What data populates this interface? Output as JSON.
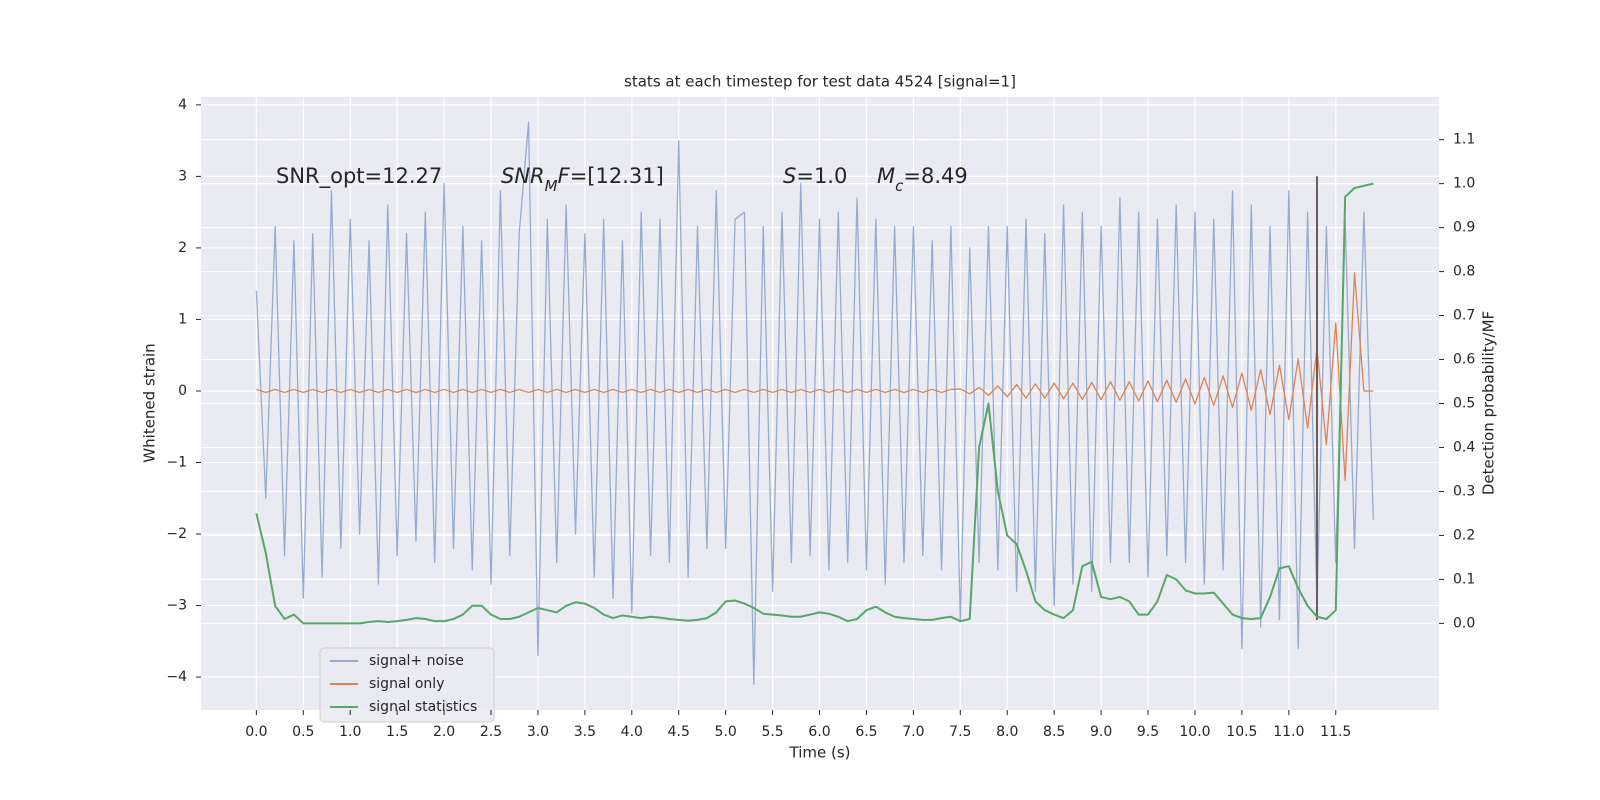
{
  "chart_data": {
    "type": "line",
    "title": "stats at each timestep for test data 4524 [signal=1]",
    "x_label": "Time (s)",
    "y_label": "Whitened strain",
    "y2_label": "Detection probability/MF",
    "xlim": [
      -0.59,
      12.6
    ],
    "ylim": [
      -4.46,
      4.11
    ],
    "y2lim": [
      -0.197,
      1.197
    ],
    "xticks": [
      {
        "value": 0,
        "label": "0.0"
      },
      0.5,
      {
        "value": 1,
        "label": "1.0"
      },
      1.5,
      {
        "value": 2,
        "label": "2.0"
      },
      2.5,
      {
        "value": 3,
        "label": "3.0"
      },
      3.5,
      {
        "value": 4,
        "label": "4.0"
      },
      4.5,
      {
        "value": 5,
        "label": "5.0"
      },
      5.5,
      {
        "value": 6,
        "label": "6.0"
      },
      6.5,
      {
        "value": 7,
        "label": "7.0"
      },
      7.5,
      {
        "value": 8,
        "label": "8.0"
      },
      8.5,
      {
        "value": 9,
        "label": "9.0"
      },
      9.5,
      {
        "value": 10,
        "label": "10.0"
      },
      10.5,
      {
        "value": 11,
        "label": "11.0"
      },
      11.5
    ],
    "yticks": [
      {
        "value": -4,
        "label": "−4"
      },
      {
        "value": -3,
        "label": "−3"
      },
      {
        "value": -2,
        "label": "−2"
      },
      {
        "value": -1,
        "label": "−1"
      },
      0,
      1,
      2,
      3,
      4
    ],
    "y2ticks": [
      {
        "value": 0,
        "label": "0.0"
      },
      0.1,
      0.2,
      0.3,
      0.4,
      0.5,
      0.6,
      0.7,
      0.8,
      0.9,
      {
        "value": 1,
        "label": "1.0"
      },
      1.1
    ],
    "grid": true,
    "legend": "lower left",
    "annotations": [
      [
        {
          "text": "SNR_opt=12.27",
          "math": "none"
        }
      ],
      [
        {
          "text": "SNR",
          "math": "italic"
        },
        {
          "text": "M",
          "math": "sub-italic"
        },
        {
          "text": "F",
          "math": "italic"
        },
        {
          "text": "=[12.31]",
          "math": "none"
        }
      ],
      [
        {
          "text": "S",
          "math": "italic"
        },
        {
          "text": "=1.0",
          "math": "none"
        }
      ],
      [
        {
          "text": "M",
          "math": "italic"
        },
        {
          "text": "c",
          "math": "sub-italic"
        },
        {
          "text": "=8.49",
          "math": "none"
        }
      ]
    ],
    "vline_x": 11.3,
    "vline_color": "#6b5a55",
    "x": [
      0.0,
      0.1,
      0.2,
      0.3,
      0.4,
      0.5,
      0.6,
      0.7,
      0.8,
      0.9,
      1.0,
      1.1,
      1.2,
      1.3,
      1.4,
      1.5,
      1.6,
      1.7,
      1.8,
      1.9,
      2.0,
      2.1,
      2.2,
      2.3,
      2.4,
      2.5,
      2.6,
      2.7,
      2.8,
      2.9,
      3.0,
      3.1,
      3.2,
      3.3,
      3.4,
      3.5,
      3.6,
      3.7,
      3.8,
      3.9,
      4.0,
      4.1,
      4.2,
      4.3,
      4.4,
      4.5,
      4.6,
      4.7,
      4.8,
      4.9,
      5.0,
      5.1,
      5.2,
      5.3,
      5.4,
      5.5,
      5.6,
      5.7,
      5.8,
      5.9,
      6.0,
      6.1,
      6.2,
      6.3,
      6.4,
      6.5,
      6.6,
      6.7,
      6.8,
      6.9,
      7.0,
      7.1,
      7.2,
      7.3,
      7.4,
      7.5,
      7.6,
      7.7,
      7.8,
      7.9,
      8.0,
      8.1,
      8.2,
      8.3,
      8.4,
      8.5,
      8.6,
      8.7,
      8.8,
      8.9,
      9.0,
      9.1,
      9.2,
      9.3,
      9.4,
      9.5,
      9.6,
      9.7,
      9.8,
      9.9,
      10.0,
      10.1,
      10.2,
      10.3,
      10.4,
      10.5,
      10.6,
      10.7,
      10.8,
      10.9,
      11.0,
      11.1,
      11.2,
      11.3,
      11.4,
      11.5,
      11.6,
      11.7,
      11.8,
      11.9
    ],
    "series": [
      {
        "name": "signal+ noise",
        "color": "#98abcf",
        "values": [
          1.4,
          -1.5,
          2.3,
          -2.3,
          2.1,
          -2.9,
          2.2,
          -2.6,
          2.8,
          -2.2,
          2.4,
          -2.0,
          2.1,
          -2.7,
          2.6,
          -2.3,
          2.2,
          -2.1,
          2.5,
          -2.4,
          2.9,
          -2.2,
          2.3,
          -2.5,
          2.1,
          -2.7,
          2.8,
          -2.3,
          2.2,
          3.76,
          -3.7,
          2.4,
          -2.4,
          2.6,
          -2.0,
          2.2,
          -2.6,
          2.4,
          -2.9,
          2.1,
          -3.1,
          2.5,
          -2.3,
          2.4,
          -2.4,
          3.5,
          -2.6,
          2.3,
          -2.2,
          2.8,
          -2.2,
          2.4,
          2.5,
          -4.1,
          2.3,
          -2.8,
          2.5,
          -2.4,
          2.9,
          -2.3,
          2.4,
          -2.5,
          2.5,
          -2.4,
          2.7,
          -2.5,
          2.4,
          -2.7,
          2.3,
          -2.4,
          2.3,
          -2.3,
          2.1,
          -2.5,
          2.3,
          -3.2,
          2.0,
          -2.4,
          2.3,
          -2.5,
          2.3,
          -2.8,
          2.4,
          -2.8,
          2.2,
          -3.0,
          2.6,
          -2.7,
          2.5,
          -2.8,
          2.3,
          -2.4,
          2.7,
          -2.4,
          2.5,
          -2.6,
          2.4,
          -2.3,
          2.6,
          -2.4,
          2.5,
          -2.7,
          2.4,
          -2.5,
          2.8,
          -3.6,
          2.6,
          -3.3,
          2.3,
          -3.2,
          2.8,
          -3.6,
          2.5,
          -3.0,
          2.3,
          -2.4,
          2.4,
          -2.2,
          2.5,
          -1.8
        ]
      },
      {
        "name": "signal only",
        "color": "#dd8452",
        "values": [
          0.02,
          -0.02,
          0.02,
          -0.02,
          0.02,
          -0.02,
          0.02,
          -0.02,
          0.02,
          -0.02,
          0.02,
          -0.02,
          0.02,
          -0.02,
          0.02,
          -0.02,
          0.02,
          -0.02,
          0.02,
          -0.02,
          0.02,
          -0.02,
          0.02,
          -0.02,
          0.02,
          -0.02,
          0.02,
          -0.02,
          0.02,
          -0.02,
          0.02,
          -0.02,
          0.02,
          -0.02,
          0.02,
          -0.02,
          0.02,
          -0.02,
          0.02,
          -0.02,
          0.02,
          -0.02,
          0.02,
          -0.02,
          0.02,
          -0.02,
          0.02,
          -0.02,
          0.02,
          -0.02,
          0.02,
          -0.02,
          0.02,
          -0.02,
          0.02,
          -0.02,
          0.02,
          -0.02,
          0.02,
          -0.02,
          0.02,
          -0.02,
          0.02,
          -0.02,
          0.02,
          -0.02,
          0.02,
          -0.02,
          0.02,
          -0.02,
          0.02,
          -0.02,
          0.02,
          -0.02,
          0.02,
          0.03,
          -0.04,
          0.05,
          -0.06,
          0.07,
          -0.08,
          0.09,
          -0.1,
          0.1,
          -0.1,
          0.11,
          -0.11,
          0.11,
          -0.12,
          0.12,
          -0.12,
          0.13,
          -0.13,
          0.13,
          -0.14,
          0.14,
          -0.15,
          0.15,
          -0.16,
          0.17,
          -0.18,
          0.19,
          -0.2,
          0.21,
          -0.23,
          0.25,
          -0.27,
          0.3,
          -0.33,
          0.36,
          -0.4,
          0.45,
          -0.52,
          0.6,
          -0.75,
          0.95,
          -1.25,
          1.65,
          0,
          0
        ]
      },
      {
        "name": "signal statistics",
        "color": "#55a868",
        "axis": "y2",
        "values": [
          0.25,
          0.16,
          0.04,
          0.01,
          0.02,
          0.0,
          0.0,
          0.0,
          0.0,
          0.0,
          0.0,
          0.0,
          0.003,
          0.005,
          0.003,
          0.005,
          0.008,
          0.012,
          0.01,
          0.005,
          0.005,
          0.01,
          0.02,
          0.04,
          0.04,
          0.02,
          0.01,
          0.01,
          0.015,
          0.025,
          0.035,
          0.03,
          0.025,
          0.04,
          0.048,
          0.045,
          0.035,
          0.02,
          0.012,
          0.018,
          0.015,
          0.012,
          0.015,
          0.013,
          0.01,
          0.008,
          0.006,
          0.008,
          0.012,
          0.025,
          0.05,
          0.052,
          0.045,
          0.035,
          0.022,
          0.02,
          0.018,
          0.015,
          0.015,
          0.02,
          0.025,
          0.022,
          0.015,
          0.005,
          0.01,
          0.03,
          0.038,
          0.025,
          0.015,
          0.012,
          0.01,
          0.008,
          0.008,
          0.012,
          0.015,
          0.005,
          0.01,
          0.4,
          0.5,
          0.3,
          0.2,
          0.18,
          0.12,
          0.05,
          0.03,
          0.02,
          0.012,
          0.03,
          0.13,
          0.14,
          0.06,
          0.055,
          0.06,
          0.05,
          0.02,
          0.02,
          0.05,
          0.11,
          0.1,
          0.075,
          0.068,
          0.068,
          0.07,
          0.045,
          0.02,
          0.012,
          0.01,
          0.012,
          0.06,
          0.125,
          0.13,
          0.08,
          0.04,
          0.015,
          0.01,
          0.03,
          0.97,
          0.99,
          0.995,
          1.0
        ]
      }
    ]
  }
}
